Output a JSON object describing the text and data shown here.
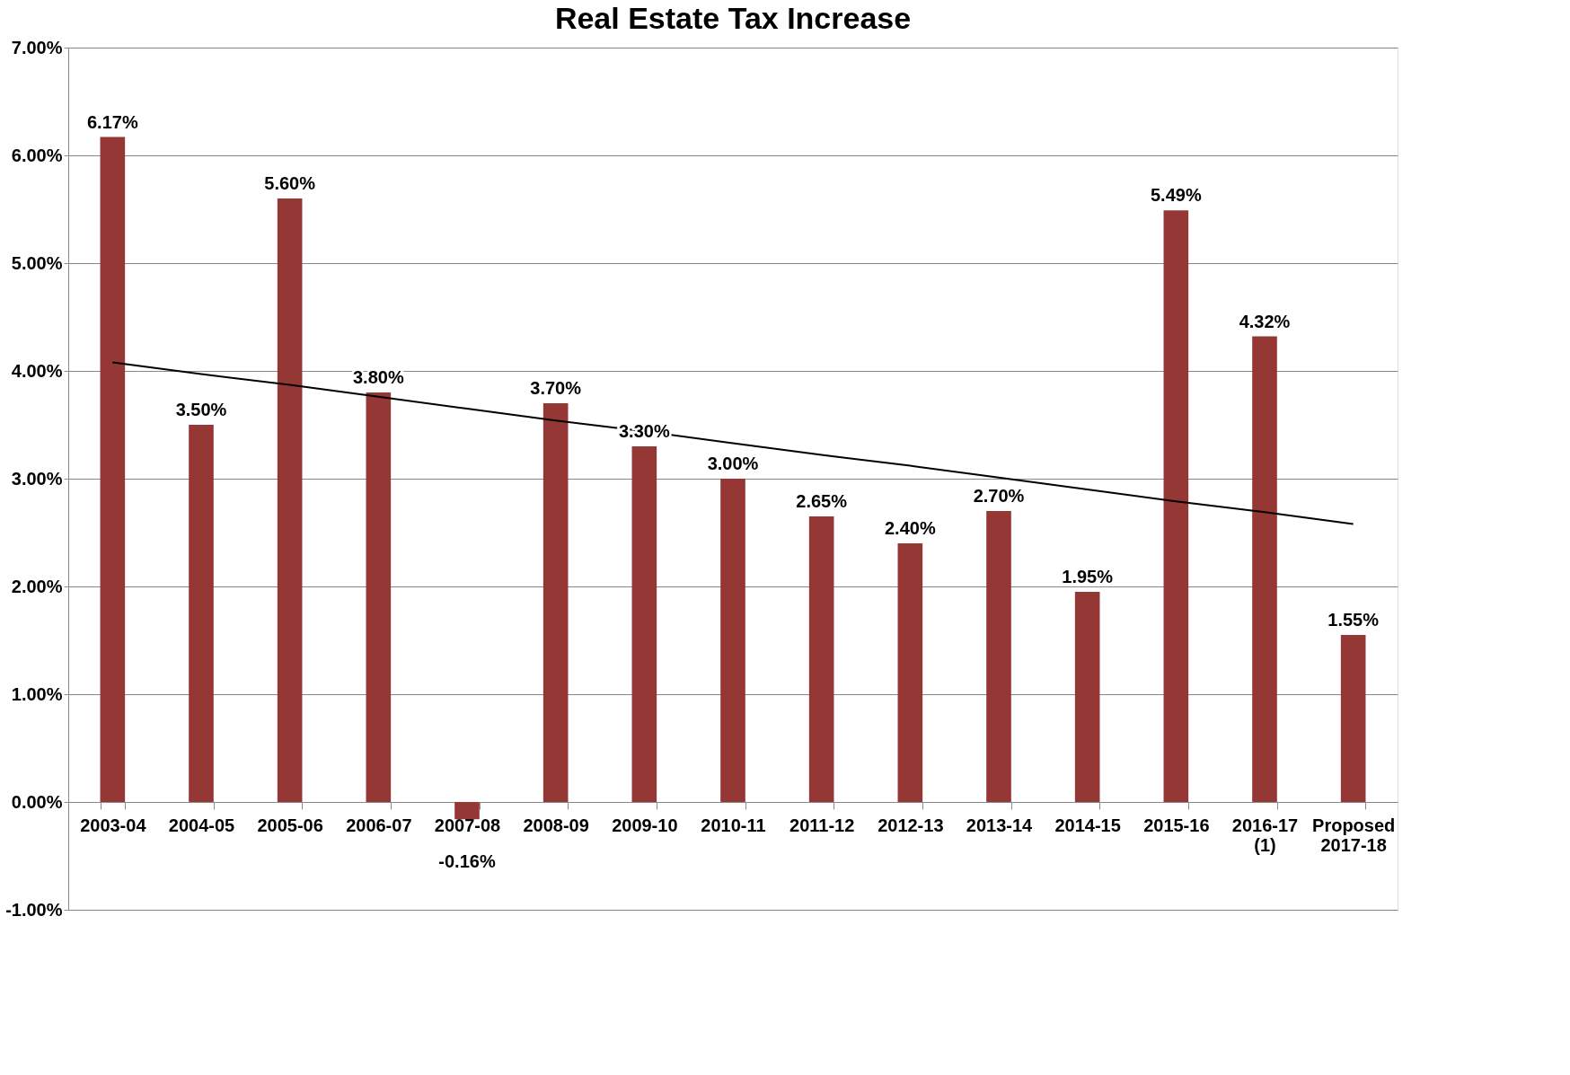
{
  "chart_data": {
    "type": "bar",
    "title": "Real Estate Tax Increase",
    "categories": [
      "2003-04",
      "2004-05",
      "2005-06",
      "2006-07",
      "2007-08",
      "2008-09",
      "2009-10",
      "2010-11",
      "2011-12",
      "2012-13",
      "2013-14",
      "2014-15",
      "2015-16",
      "2016-17\n(1)",
      "Proposed\n2017-18"
    ],
    "series": [
      {
        "color": "#953735",
        "values": [
          6.17,
          3.5,
          5.6,
          3.8,
          -0.16,
          3.7,
          3.3,
          3.0,
          2.65,
          2.4,
          2.7,
          1.95,
          5.49,
          4.32,
          1.55
        ],
        "value_labels": [
          "6.17%",
          "3.50%",
          "5.60%",
          "3.80%",
          "-0.16%",
          "3.70%",
          "3.30%",
          "3.00%",
          "2.65%",
          "2.40%",
          "2.70%",
          "1.95%",
          "5.49%",
          "4.32%",
          "1.55%"
        ]
      },
      {
        "type": "line",
        "color": "#000000",
        "values": [
          4.08,
          3.97,
          3.87,
          3.76,
          3.65,
          3.54,
          3.44,
          3.33,
          3.22,
          3.12,
          3.01,
          2.9,
          2.79,
          2.69,
          2.58
        ]
      }
    ],
    "ylim": [
      -1,
      7
    ],
    "yticks": [
      {
        "value": -1,
        "label": "-1.00%"
      },
      {
        "value": 0,
        "label": "0.00%"
      },
      {
        "value": 1,
        "label": "1.00%"
      },
      {
        "value": 2,
        "label": "2.00%"
      },
      {
        "value": 3,
        "label": "3.00%"
      },
      {
        "value": 4,
        "label": "4.00%"
      },
      {
        "value": 5,
        "label": "5.00%"
      },
      {
        "value": 6,
        "label": "6.00%"
      },
      {
        "value": 7,
        "label": "7.00%"
      }
    ],
    "grid": "y"
  }
}
